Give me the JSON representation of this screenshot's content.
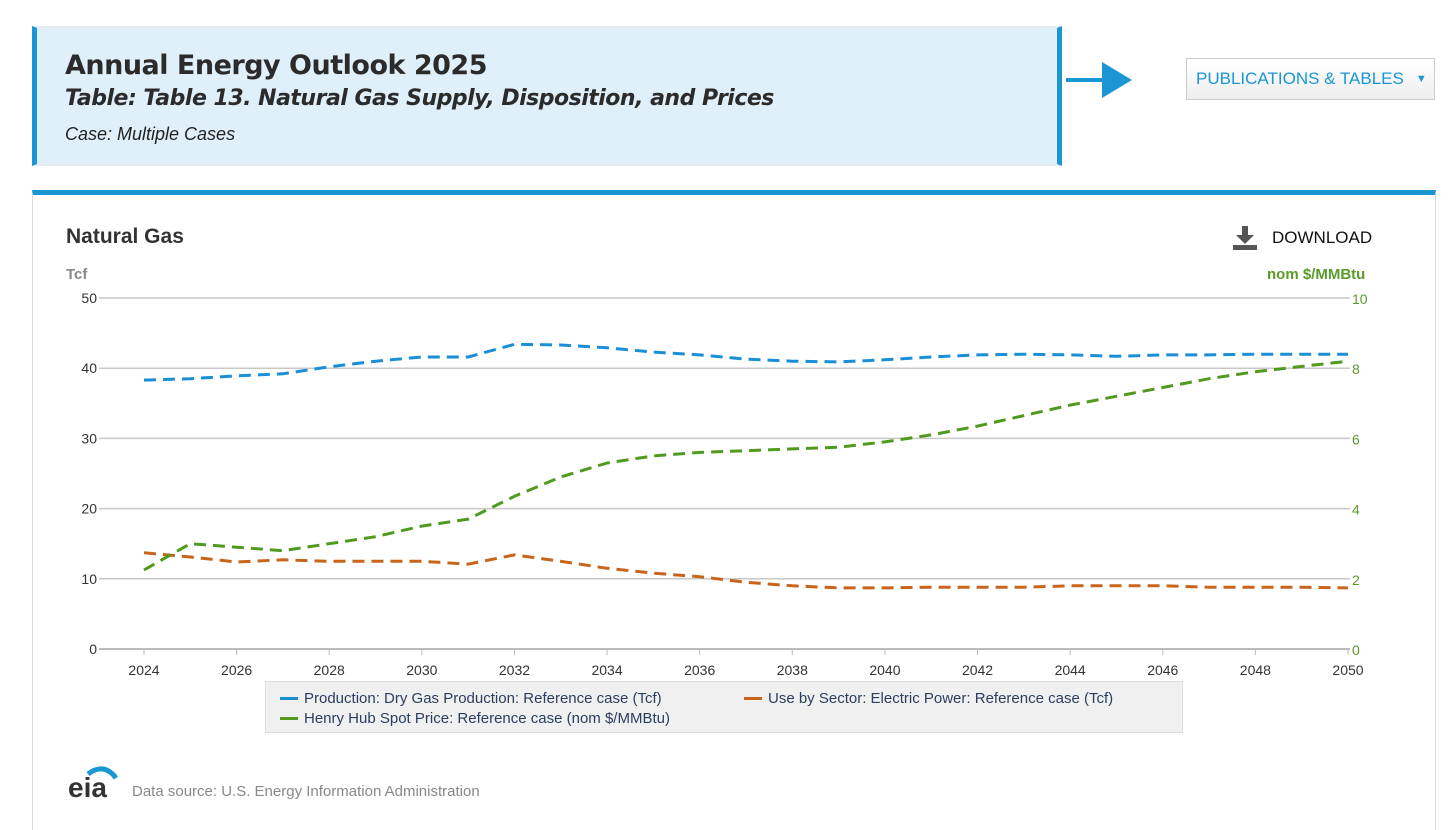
{
  "header": {
    "title": "Annual Energy Outlook 2025",
    "table": "Table: Table 13. Natural Gas Supply, Disposition, and Prices",
    "case": "Case: Multiple Cases"
  },
  "nav": {
    "publications_label": "PUBLICATIONS & TABLES",
    "caret": "▼"
  },
  "download_label": "DOWNLOAD",
  "footer": {
    "logo_text": "eia",
    "source": "Data source: U.S. Energy Information Administration"
  },
  "colors": {
    "accent": "#1a96d4",
    "production": "#1a8fd6",
    "electric": "#c8651b",
    "henry_hub": "#4f9a1f"
  },
  "chart_data": {
    "type": "line",
    "title": "Natural Gas",
    "ylabel": "Tcf",
    "y2label": "nom $/MMBtu",
    "ylim": [
      0,
      50
    ],
    "y2lim": [
      0,
      10
    ],
    "yticks": [
      0,
      10,
      20,
      30,
      40,
      50
    ],
    "y2ticks": [
      0,
      2,
      4,
      6,
      8,
      10
    ],
    "xticks": [
      2024,
      2026,
      2028,
      2030,
      2032,
      2034,
      2036,
      2038,
      2040,
      2042,
      2044,
      2046,
      2048,
      2050
    ],
    "grid": true,
    "legend_position": "bottom",
    "x": [
      2024,
      2025,
      2026,
      2027,
      2028,
      2029,
      2030,
      2031,
      2032,
      2033,
      2034,
      2035,
      2036,
      2037,
      2038,
      2039,
      2040,
      2041,
      2042,
      2043,
      2044,
      2045,
      2046,
      2047,
      2048,
      2049,
      2050
    ],
    "series": [
      {
        "name": "Production: Dry Gas Production: Reference case (Tcf)",
        "axis": "left",
        "color": "#1a8fd6",
        "values": [
          38.3,
          38.5,
          38.9,
          39.2,
          40.2,
          41.0,
          41.6,
          41.6,
          43.4,
          43.3,
          42.9,
          42.3,
          41.9,
          41.3,
          41.0,
          40.9,
          41.2,
          41.6,
          41.9,
          42.0,
          41.9,
          41.7,
          41.9,
          41.9,
          42.0,
          42.0,
          42.0
        ]
      },
      {
        "name": "Use by Sector: Electric Power: Reference case (Tcf)",
        "axis": "left",
        "color": "#c8651b",
        "values": [
          13.7,
          13.1,
          12.4,
          12.7,
          12.5,
          12.5,
          12.5,
          12.1,
          13.4,
          12.5,
          11.5,
          10.8,
          10.3,
          9.5,
          9.0,
          8.7,
          8.7,
          8.8,
          8.8,
          8.8,
          9.0,
          9.0,
          9.0,
          8.8,
          8.8,
          8.8,
          8.7
        ]
      },
      {
        "name": "Henry Hub Spot Price: Reference case (nom $/MMBtu)",
        "axis": "right",
        "color": "#4f9a1f",
        "values": [
          2.25,
          3.0,
          2.9,
          2.8,
          3.0,
          3.2,
          3.5,
          3.7,
          4.35,
          4.9,
          5.3,
          5.5,
          5.6,
          5.65,
          5.7,
          5.75,
          5.9,
          6.1,
          6.35,
          6.65,
          6.95,
          7.2,
          7.45,
          7.7,
          7.9,
          8.05,
          8.2
        ]
      }
    ]
  }
}
